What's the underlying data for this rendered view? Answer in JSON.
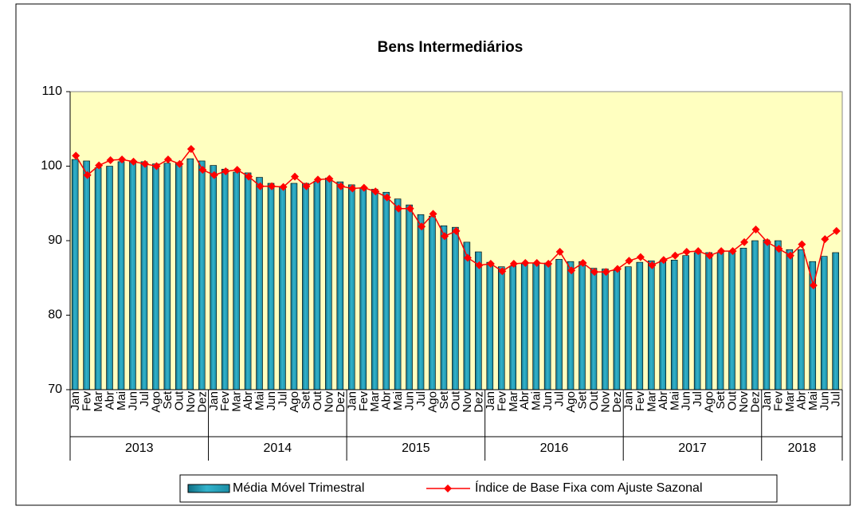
{
  "chart_data": {
    "type": "bar-line",
    "title": "Bens Intermediários",
    "categories": [
      "Jan",
      "Fev",
      "Mar",
      "Abr",
      "Mai",
      "Jun",
      "Jul",
      "Ago",
      "Set",
      "Out",
      "Nov",
      "Dez",
      "Jan",
      "Fev",
      "Mar",
      "Abr",
      "Mai",
      "Jun",
      "Jul",
      "Ago",
      "Set",
      "Out",
      "Nov",
      "Dez",
      "Jan",
      "Fev",
      "Mar",
      "Abr",
      "Mai",
      "Jun",
      "Jul",
      "Ago",
      "Set",
      "Out",
      "Nov",
      "Dez",
      "Jan",
      "Fev",
      "Mar",
      "Abr",
      "Mai",
      "Jun",
      "Jul",
      "Ago",
      "Set",
      "Out",
      "Nov",
      "Dez",
      "Jan",
      "Fev",
      "Mar",
      "Abr",
      "Mai",
      "Jun",
      "Jul",
      "Ago",
      "Set",
      "Out",
      "Nov",
      "Dez",
      "Jan",
      "Fev",
      "Mar",
      "Abr",
      "Mai",
      "Jun",
      "Jul"
    ],
    "years": [
      "2013",
      "2014",
      "2015",
      "2016",
      "2017",
      "2018"
    ],
    "series": [
      {
        "name": "Média Móvel Trimestral",
        "type": "bar",
        "color": "#33b3cc",
        "values": [
          100.9,
          100.7,
          99.8,
          100.0,
          100.6,
          100.6,
          100.6,
          100.3,
          100.4,
          100.5,
          101.0,
          100.7,
          100.1,
          99.6,
          99.2,
          99.1,
          98.5,
          97.7,
          97.3,
          97.7,
          97.7,
          98.0,
          98.4,
          97.9,
          97.5,
          97.1,
          96.9,
          96.5,
          95.6,
          94.8,
          93.5,
          93.3,
          92.0,
          91.8,
          89.8,
          88.5,
          87.1,
          86.5,
          86.6,
          86.9,
          87.0,
          87.0,
          87.5,
          87.2,
          87.2,
          86.3,
          86.2,
          86.0,
          86.5,
          87.1,
          87.3,
          87.3,
          87.4,
          88.0,
          88.4,
          88.4,
          88.4,
          88.6,
          89.0,
          90.0,
          90.1,
          90.0,
          88.8,
          88.8,
          87.2,
          87.9,
          88.4
        ]
      },
      {
        "name": "Índice de Base Fixa com Ajuste Sazonal",
        "type": "line",
        "color": "#ff0000",
        "values": [
          101.4,
          98.8,
          100.1,
          100.8,
          100.9,
          100.6,
          100.3,
          100.0,
          100.9,
          100.3,
          102.3,
          99.5,
          98.8,
          99.3,
          99.5,
          98.6,
          97.3,
          97.3,
          97.2,
          98.6,
          97.3,
          98.2,
          98.3,
          97.3,
          97.0,
          97.1,
          96.6,
          95.8,
          94.3,
          94.3,
          91.9,
          93.6,
          90.6,
          91.3,
          87.7,
          86.7,
          86.9,
          85.9,
          86.9,
          87.0,
          87.0,
          86.9,
          88.5,
          86.0,
          87.0,
          85.8,
          85.8,
          86.2,
          87.3,
          87.8,
          86.7,
          87.4,
          88.0,
          88.5,
          88.6,
          88.0,
          88.6,
          88.6,
          89.8,
          91.5,
          89.8,
          88.9,
          88.0,
          89.5,
          84.0,
          90.2,
          91.3
        ]
      }
    ],
    "ylim": [
      70,
      110
    ],
    "yticks": [
      70,
      80,
      90,
      100,
      110
    ],
    "plot_background": "#ffffc0"
  }
}
